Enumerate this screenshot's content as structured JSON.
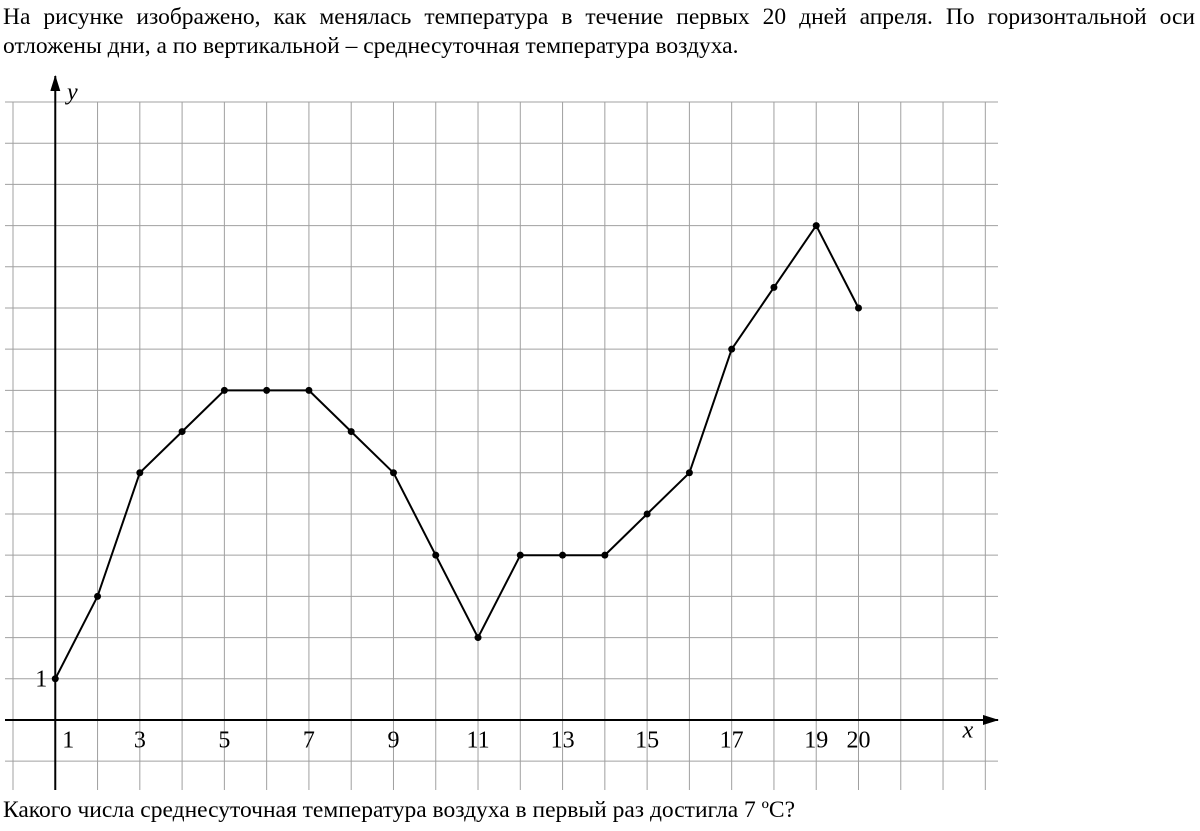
{
  "intro": "На рисунке изображено, как менялась температура в течение первых 20 дней апреля. По горизонтальной оси отложены дни, а по вертикальной – среднесуточная температура воздуха.",
  "question": "Какого числа среднесуточная температура воздуха в первый раз достигла 7 ºС?",
  "chart_data": {
    "type": "line",
    "x_label": "x",
    "y_label": "y",
    "x": [
      1,
      2,
      3,
      4,
      5,
      6,
      7,
      8,
      9,
      10,
      11,
      12,
      13,
      14,
      15,
      16,
      17,
      18,
      19,
      20
    ],
    "series": [
      {
        "color": "#000000",
        "values": [
          1,
          3,
          6,
          7,
          8,
          8,
          8,
          7,
          6,
          4,
          2,
          4,
          4,
          4,
          5,
          6,
          9,
          10.5,
          12,
          10
        ]
      }
    ],
    "xlim": [
      0,
      23.3
    ],
    "ylim": [
      -1.7,
      15
    ],
    "xticks": [
      1,
      3,
      5,
      7,
      9,
      11,
      13,
      15,
      17,
      19,
      20
    ],
    "yticks": [
      1
    ],
    "xgrid": [
      0,
      1,
      2,
      3,
      4,
      5,
      6,
      7,
      8,
      9,
      10,
      11,
      12,
      13,
      14,
      15,
      16,
      17,
      18,
      19,
      20,
      21,
      22,
      23
    ],
    "ygrid": [
      -1,
      1,
      2,
      3,
      4,
      5,
      6,
      7,
      8,
      9,
      10,
      11,
      12,
      13,
      14,
      15
    ],
    "grid": true
  }
}
